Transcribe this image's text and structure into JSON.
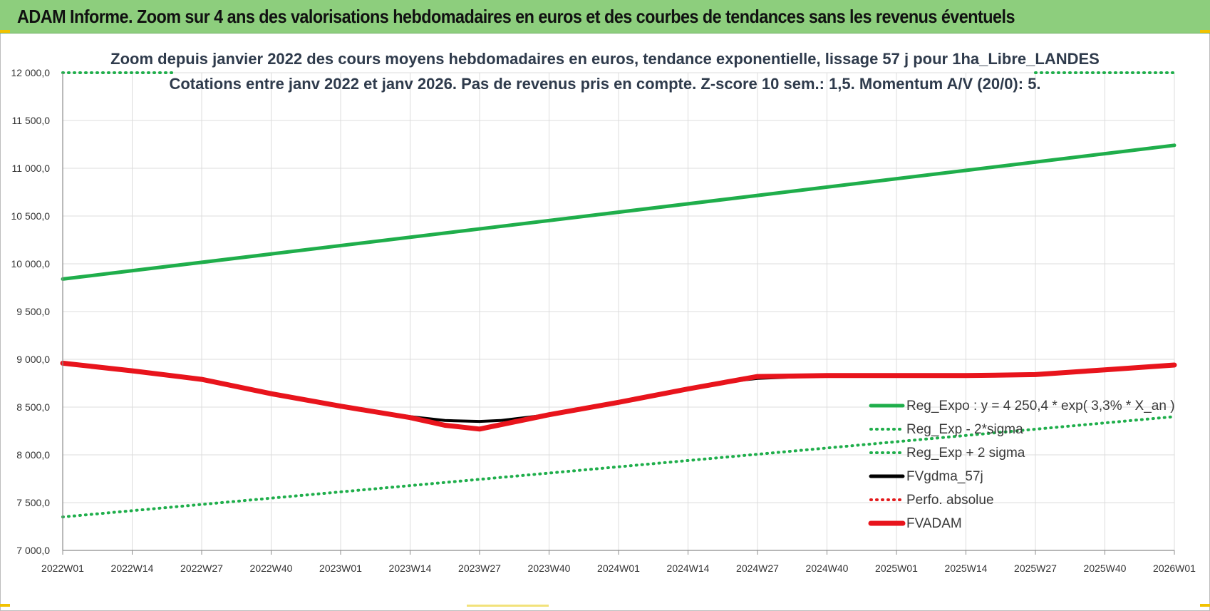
{
  "banner": {
    "title": "ADAM Informe. Zoom sur 4 ans des valorisations hebdomadaires en euros et des courbes de tendances sans les revenus éventuels"
  },
  "chart_data": {
    "type": "line",
    "title": "Zoom depuis janvier 2022 des cours moyens hebdomadaires en euros, tendance exponentielle, lissage 57 j pour 1ha_Libre_LANDES",
    "subtitle": "Cotations entre janv 2022 et janv 2026. Pas de revenus pris en compte. Z-score 10 sem.: 1,5. Momentum A/V (20/0): 5.",
    "xlabel": "",
    "ylabel": "",
    "ylim": [
      7000,
      12000
    ],
    "y_ticks": [
      "7 000,0",
      "7 500,0",
      "8 000,0",
      "8 500,0",
      "9 000,0",
      "9 500,0",
      "10 000,0",
      "10 500,0",
      "11 000,0",
      "11 500,0",
      "12 000,0"
    ],
    "x_ticks": [
      "2022W01",
      "2022W14",
      "2022W27",
      "2022W40",
      "2023W01",
      "2023W14",
      "2023W27",
      "2023W40",
      "2024W01",
      "2024W14",
      "2024W27",
      "2024W40",
      "2025W01",
      "2025W14",
      "2025W27",
      "2025W40",
      "2026W01"
    ],
    "grid": true,
    "legend_position": "bottom-right",
    "series": [
      {
        "name": "Reg_Expo : y = 4 250,4 * exp( 3,3% * X_an )",
        "color": "#1fae4b",
        "style": "solid",
        "x": [
          0,
          16
        ],
        "y": [
          9840,
          11240
        ]
      },
      {
        "name": "Reg_Exp - 2*sigma",
        "color": "#1fae4b",
        "style": "dotted",
        "x": [
          0,
          16
        ],
        "y": [
          7350,
          8400
        ]
      },
      {
        "name": "Reg_Exp + 2 sigma",
        "color": "#1fae4b",
        "style": "dotted",
        "x": [
          0,
          1.6,
          14.0,
          16
        ],
        "y": [
          12000,
          12000,
          12000,
          12000
        ],
        "segments": [
          [
            0,
            1.6
          ],
          [
            14.0,
            16
          ]
        ]
      },
      {
        "name": "FVgdma_57j",
        "color": "#000000",
        "style": "solid",
        "x": [
          0,
          1,
          2,
          3,
          4,
          5,
          5.5,
          6,
          6.3,
          7,
          8,
          9,
          9.5,
          10,
          11,
          12,
          13,
          14,
          15,
          16
        ],
        "y": [
          8960,
          8880,
          8790,
          8640,
          8510,
          8400,
          8360,
          8350,
          8360,
          8420,
          8550,
          8690,
          8760,
          8800,
          8830,
          8830,
          8830,
          8840,
          8890,
          8940
        ]
      },
      {
        "name": "Perfo. absolue",
        "color": "#e31a1c",
        "style": "dotted",
        "x": [],
        "y": []
      },
      {
        "name": "FVADAM",
        "color": "#e8141c",
        "style": "solid",
        "x": [
          0,
          1,
          2,
          3,
          4,
          5,
          5.5,
          6,
          7,
          8,
          9,
          10,
          11,
          12,
          13,
          14,
          15,
          16
        ],
        "y": [
          8960,
          8880,
          8790,
          8640,
          8510,
          8390,
          8310,
          8270,
          8420,
          8550,
          8690,
          8820,
          8830,
          8830,
          8830,
          8840,
          8890,
          8940
        ]
      }
    ]
  }
}
